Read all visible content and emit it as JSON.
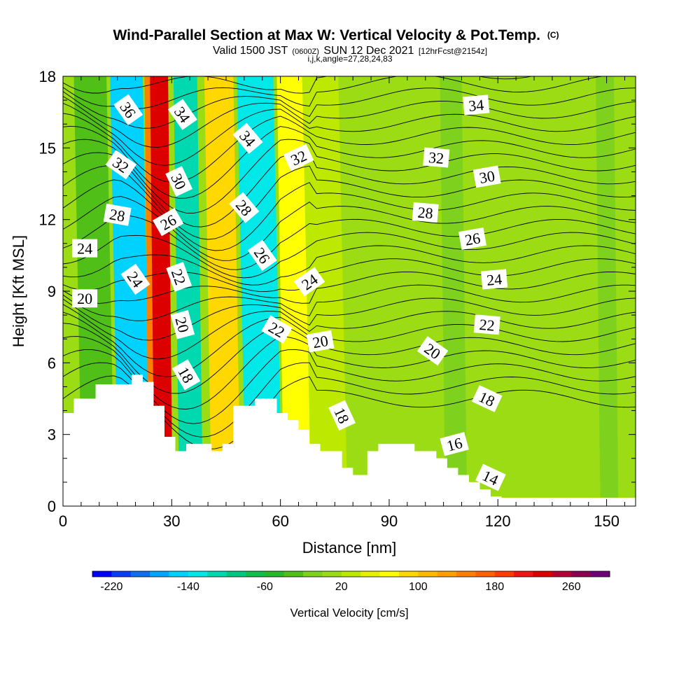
{
  "header": {
    "title_main": "Wind-Parallel Section at Max W: Vertical Velocity & Pot.Temp.",
    "title_mark": "(C)",
    "valid_prefix": "Valid 1500 JST",
    "valid_utc": "(0600Z)",
    "valid_date": "SUN 12 Dec 2021",
    "forecast": "[12hrFcst@2154z]",
    "indices": "i,j,k,angle=27,28,24,83"
  },
  "chart_data": {
    "type": "heatmap",
    "xlabel": "Distance [nm]",
    "ylabel": "Height [Kft MSL]",
    "xlim": [
      0,
      158
    ],
    "ylim": [
      0,
      18
    ],
    "x_ticks": [
      "0",
      "30",
      "60",
      "90",
      "120",
      "150"
    ],
    "x_tick_values": [
      0,
      30,
      60,
      90,
      120,
      150
    ],
    "y_ticks": [
      "0",
      "3",
      "6",
      "9",
      "12",
      "15",
      "18"
    ],
    "y_tick_values": [
      0,
      3,
      6,
      9,
      12,
      15,
      18
    ],
    "field": "Vertical Velocity",
    "colorbar": {
      "label": "Vertical Velocity [cm/s]",
      "tick_labels": [
        "-220",
        "-140",
        "-60",
        "20",
        "100",
        "180",
        "260"
      ],
      "tick_values": [
        -220,
        -140,
        -60,
        20,
        100,
        180,
        260
      ],
      "levels": [
        -240,
        -220,
        -200,
        -180,
        -160,
        -140,
        -120,
        -100,
        -80,
        -60,
        -40,
        -20,
        0,
        20,
        40,
        60,
        80,
        100,
        120,
        140,
        160,
        180,
        200,
        220,
        240,
        260,
        280,
        300
      ],
      "colors": [
        "#0000ff",
        "#0a3cf5",
        "#0f6ef0",
        "#00a5ff",
        "#00d2ff",
        "#00e8e8",
        "#00d8b0",
        "#00c880",
        "#10bf4c",
        "#28b828",
        "#50c018",
        "#7ed21e",
        "#9bdc14",
        "#bde800",
        "#e6f000",
        "#ffff00",
        "#ffd800",
        "#ffba00",
        "#ff9e00",
        "#ff8000",
        "#ff6000",
        "#ff3c00",
        "#f01414",
        "#dc0000",
        "#b40032",
        "#8c0050",
        "#6e0078"
      ]
    },
    "vertical_velocity_bands": [
      {
        "x_nm": [
          3,
          12
        ],
        "w_cms": -40
      },
      {
        "x_nm": [
          13,
          22
        ],
        "w_cms": -150
      },
      {
        "x_nm": [
          22.5,
          27
        ],
        "w_cms": 140
      },
      {
        "x_nm": [
          24,
          29
        ],
        "w_cms": 220
      },
      {
        "x_nm": [
          30.5,
          37
        ],
        "w_cms": -110
      },
      {
        "x_nm": [
          39,
          47
        ],
        "w_cms": 90
      },
      {
        "x_nm": [
          48,
          58
        ],
        "w_cms": -130
      },
      {
        "x_nm": [
          59,
          67
        ],
        "w_cms": 70
      },
      {
        "x_nm": [
          66,
          76
        ],
        "w_cms": 30
      },
      {
        "x_nm": [
          83,
          88
        ],
        "w_cms": 0
      },
      {
        "x_nm": [
          104,
          110
        ],
        "w_cms": -20
      },
      {
        "x_nm": [
          128,
          135
        ],
        "w_cms": 0
      },
      {
        "x_nm": [
          147,
          152
        ],
        "w_cms": -20
      }
    ],
    "terrain_kft": {
      "x_nm": [
        0,
        3,
        6,
        9,
        13,
        19,
        22,
        25,
        28,
        31,
        34,
        41,
        44,
        47,
        50,
        53,
        56,
        59,
        62,
        65,
        68,
        71,
        77,
        80,
        84,
        87,
        94,
        97,
        100,
        103,
        106,
        109,
        112,
        115,
        118,
        121,
        158
      ],
      "height": [
        3.9,
        4.5,
        4.5,
        5.1,
        5.1,
        5.5,
        5.2,
        4.2,
        2.9,
        2.3,
        2.6,
        2.3,
        2.6,
        4.2,
        4.2,
        4.5,
        4.5,
        3.9,
        3.6,
        3.2,
        2.6,
        2.3,
        1.6,
        1.3,
        2.3,
        2.6,
        2.6,
        2.3,
        2.3,
        2.0,
        1.6,
        1.3,
        1.0,
        0.7,
        0.4,
        0.35,
        0.35
      ]
    },
    "potential_temperature_labels": [
      {
        "text": "36",
        "x": 18,
        "y": 16.6,
        "angle": 55
      },
      {
        "text": "34",
        "x": 33,
        "y": 16.4,
        "angle": 55
      },
      {
        "text": "34",
        "x": 51,
        "y": 15.4,
        "angle": 50
      },
      {
        "text": "34",
        "x": 114,
        "y": 16.8,
        "angle": -5
      },
      {
        "text": "32",
        "x": 16,
        "y": 14.3,
        "angle": 35
      },
      {
        "text": "32",
        "x": 65,
        "y": 14.6,
        "angle": -25
      },
      {
        "text": "32",
        "x": 103,
        "y": 14.6,
        "angle": 5
      },
      {
        "text": "30",
        "x": 32,
        "y": 13.6,
        "angle": 65
      },
      {
        "text": "30",
        "x": 117,
        "y": 13.8,
        "angle": -10
      },
      {
        "text": "28",
        "x": 15,
        "y": 12.2,
        "angle": 10
      },
      {
        "text": "28",
        "x": 50,
        "y": 12.5,
        "angle": 50
      },
      {
        "text": "28",
        "x": 100,
        "y": 12.3,
        "angle": 5
      },
      {
        "text": "26",
        "x": 29,
        "y": 11.9,
        "angle": -30
      },
      {
        "text": "26",
        "x": 55,
        "y": 10.5,
        "angle": 55
      },
      {
        "text": "26",
        "x": 113,
        "y": 11.2,
        "angle": -10
      },
      {
        "text": "24",
        "x": 6,
        "y": 10.8,
        "angle": 0
      },
      {
        "text": "24",
        "x": 20,
        "y": 9.5,
        "angle": 55
      },
      {
        "text": "24",
        "x": 68,
        "y": 9.4,
        "angle": -35
      },
      {
        "text": "24",
        "x": 119,
        "y": 9.5,
        "angle": -5
      },
      {
        "text": "22",
        "x": 32,
        "y": 9.6,
        "angle": 70
      },
      {
        "text": "22",
        "x": 59,
        "y": 7.4,
        "angle": 30
      },
      {
        "text": "22",
        "x": 117,
        "y": 7.6,
        "angle": 5
      },
      {
        "text": "20",
        "x": 6,
        "y": 8.7,
        "angle": 0
      },
      {
        "text": "20",
        "x": 33,
        "y": 7.6,
        "angle": 75
      },
      {
        "text": "20",
        "x": 71,
        "y": 6.9,
        "angle": -10
      },
      {
        "text": "20",
        "x": 102,
        "y": 6.5,
        "angle": 35
      },
      {
        "text": "18",
        "x": 34,
        "y": 5.5,
        "angle": 60
      },
      {
        "text": "18",
        "x": 77,
        "y": 3.8,
        "angle": 65
      },
      {
        "text": "18",
        "x": 117,
        "y": 4.5,
        "angle": 25
      },
      {
        "text": "16",
        "x": 108,
        "y": 2.6,
        "angle": -15
      },
      {
        "text": "14",
        "x": 118,
        "y": 1.2,
        "angle": 25
      }
    ]
  }
}
